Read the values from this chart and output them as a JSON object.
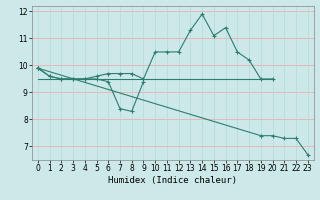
{
  "xlabel": "Humidex (Indice chaleur)",
  "background_color": "#cce8e8",
  "line_color": "#2d7d6e",
  "grid_color_h": "#e8b0b0",
  "grid_color_v": "#b8d8d8",
  "xlim": [
    0,
    23
  ],
  "ylim": [
    6.5,
    12.2
  ],
  "yticks": [
    7,
    8,
    9,
    10,
    11,
    12
  ],
  "xticks": [
    0,
    1,
    2,
    3,
    4,
    5,
    6,
    7,
    8,
    9,
    10,
    11,
    12,
    13,
    14,
    15,
    16,
    17,
    18,
    19,
    20,
    21,
    22,
    23
  ],
  "line1_x": [
    0,
    1,
    2,
    3,
    4,
    5,
    6,
    7,
    8,
    9,
    10,
    11,
    12,
    13,
    14,
    15,
    16,
    17,
    18,
    19,
    20
  ],
  "line1_y": [
    9.9,
    9.6,
    9.5,
    9.5,
    9.5,
    9.6,
    9.7,
    9.7,
    9.7,
    9.5,
    10.5,
    10.5,
    10.5,
    11.3,
    11.9,
    11.1,
    11.4,
    10.5,
    10.2,
    9.5,
    9.5
  ],
  "line2_x": [
    0,
    1,
    2,
    3,
    4,
    5,
    6,
    7,
    8,
    9
  ],
  "line2_y": [
    9.9,
    9.6,
    9.5,
    9.5,
    9.5,
    9.5,
    9.4,
    8.4,
    8.3,
    9.4
  ],
  "line3_x": [
    0,
    19,
    20,
    21,
    22,
    23
  ],
  "line3_y": [
    9.9,
    7.4,
    7.4,
    7.3,
    7.3,
    6.7
  ],
  "hline_x": [
    0,
    20
  ],
  "hline_y": [
    9.5,
    9.5
  ]
}
